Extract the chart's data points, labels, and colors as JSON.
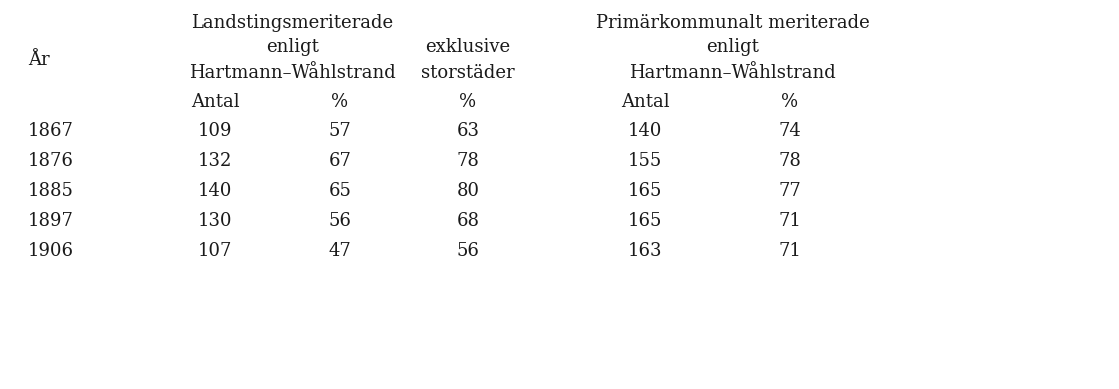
{
  "years": [
    "1867",
    "1876",
    "1885",
    "1897",
    "1906"
  ],
  "landsting_antal": [
    "109",
    "132",
    "140",
    "130",
    "107"
  ],
  "landsting_pct": [
    "57",
    "67",
    "65",
    "56",
    "47"
  ],
  "exklusive_pct": [
    "63",
    "78",
    "80",
    "68",
    "56"
  ],
  "primkom_antal": [
    "140",
    "155",
    "165",
    "165",
    "163"
  ],
  "primkom_pct": [
    "74",
    "78",
    "77",
    "71",
    "71"
  ],
  "header_line1_left": "Landstingsmeriterade",
  "header_line1_right": "Primärkommunalt meriterade",
  "header_line2_left": "enligt",
  "header_line2_mid": "exklusive",
  "header_line2_right": "enligt",
  "header_line3_left": "Hartmann–Wåhlstrand",
  "header_line3_mid": "storstäder",
  "header_line3_right": "Hartmann–Wåhlstrand",
  "subheader_antal1": "Antal",
  "subheader_pct1": "%",
  "subheader_pct2": "%",
  "subheader_antal2": "Antal",
  "subheader_pct3": "%",
  "col_label": "År",
  "bg_color": "#ffffff",
  "text_color": "#1a1a1a",
  "font_size": 13.0,
  "header_font_size": 13.0,
  "figwidth": 11.19,
  "figheight": 3.89,
  "dpi": 100
}
